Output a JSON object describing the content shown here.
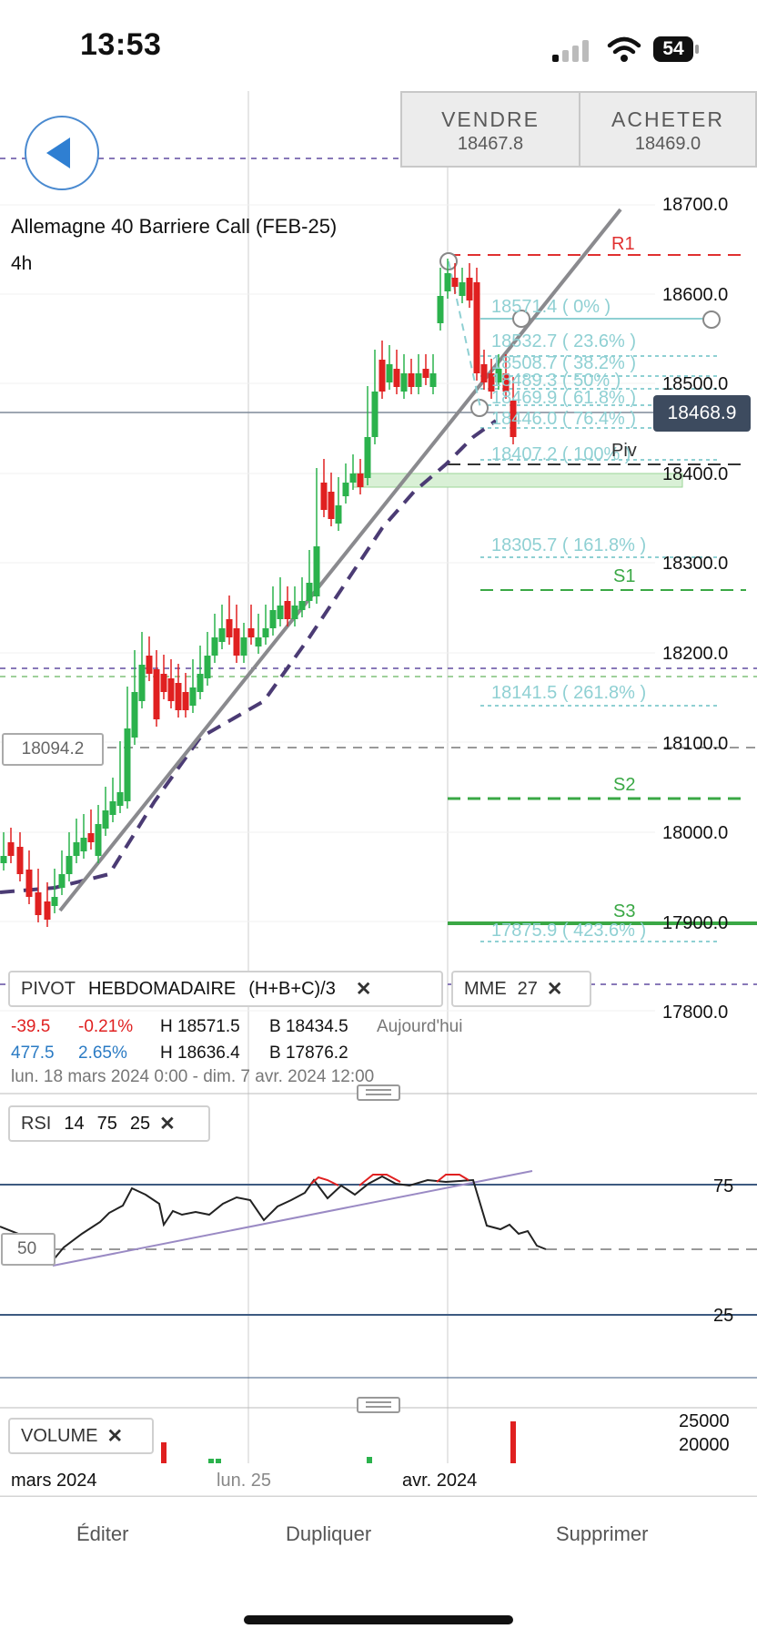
{
  "status_bar": {
    "time": "13:53",
    "battery": "54"
  },
  "trade": {
    "sell_label": "VENDRE",
    "sell_price": "18467.8",
    "buy_label": "ACHETER",
    "buy_price": "18469.0"
  },
  "chart_header": {
    "title": "Allemagne 40 Barriere Call (FEB-25)",
    "timeframe": "4h"
  },
  "price_axis": [
    "18700.0",
    "18600.0",
    "18500.0",
    "18400.0",
    "18300.0",
    "18200.0",
    "18100.0",
    "18000.0",
    "17900.0",
    "17800.0"
  ],
  "current_price": "18468.9",
  "left_price_label": "18094.2",
  "fibonacci": [
    {
      "price": "18571.4",
      "text": "18571.4 ( 0% )"
    },
    {
      "price": "18532.7",
      "text": "18532.7 ( 23.6% )"
    },
    {
      "price": "18508.7",
      "text": "18508.7 ( 38.2% )"
    },
    {
      "price": "18489.3",
      "text": "18489.3 ( 50% )"
    },
    {
      "price": "18469.9",
      "text": "18469.9 ( 61.8% )"
    },
    {
      "price": "18446.0",
      "text": "18446.0 ( 76.4% )"
    },
    {
      "price": "18407.2",
      "text": "18407.2 ( 100% )"
    },
    {
      "price": "18305.7",
      "text": "18305.7 ( 161.8% )"
    },
    {
      "price": "18141.5",
      "text": "18141.5 ( 261.8% )"
    },
    {
      "price": "17875.9",
      "text": "17875.9 ( 423.6% )"
    }
  ],
  "pivots": {
    "r1": "R1",
    "piv": "Piv",
    "s1": "S1",
    "s2": "S2",
    "s3": "S3"
  },
  "pivot_chip": {
    "name": "PIVOT",
    "period": "HEBDOMADAIRE",
    "formula": "(H+B+C)/3"
  },
  "mme_chip": {
    "name": "MME",
    "value": "27"
  },
  "stats": {
    "today": {
      "change": "-39.5",
      "pct": "-0.21%",
      "high": "H 18571.5",
      "low": "B 18434.5",
      "label": "Aujourd'hui"
    },
    "period": {
      "change": "477.5",
      "pct": "2.65%",
      "high": "H 18636.4",
      "low": "B 17876.2"
    },
    "range": "lun. 18 mars 2024 0:00 - dim. 7 avr. 2024 12:00"
  },
  "rsi_chip": {
    "name": "RSI",
    "p1": "14",
    "p2": "75",
    "p3": "25"
  },
  "rsi_levels": {
    "upper": "75",
    "lower": "25",
    "mid": "50"
  },
  "volume_chip": {
    "name": "VOLUME"
  },
  "volume_axis": [
    "25000",
    "20000"
  ],
  "time_axis": [
    "mars 2024",
    "lun. 25",
    "avr. 2024"
  ],
  "bottom_actions": {
    "edit": "Éditer",
    "duplicate": "Dupliquer",
    "delete": "Supprimer"
  },
  "colors": {
    "up": "#2bb24c",
    "down": "#e02020",
    "fib": "#8fd0d3",
    "pivot_res": "#e03030",
    "pivot_sup": "#3aa845",
    "ema": "#4b3b74",
    "trend": "#8a8a8e",
    "accent": "#3d4b5f"
  },
  "icons": [
    "back-arrow-icon",
    "close-icon",
    "drag-handle-icon",
    "signal-icon",
    "wifi-icon",
    "battery-icon"
  ]
}
